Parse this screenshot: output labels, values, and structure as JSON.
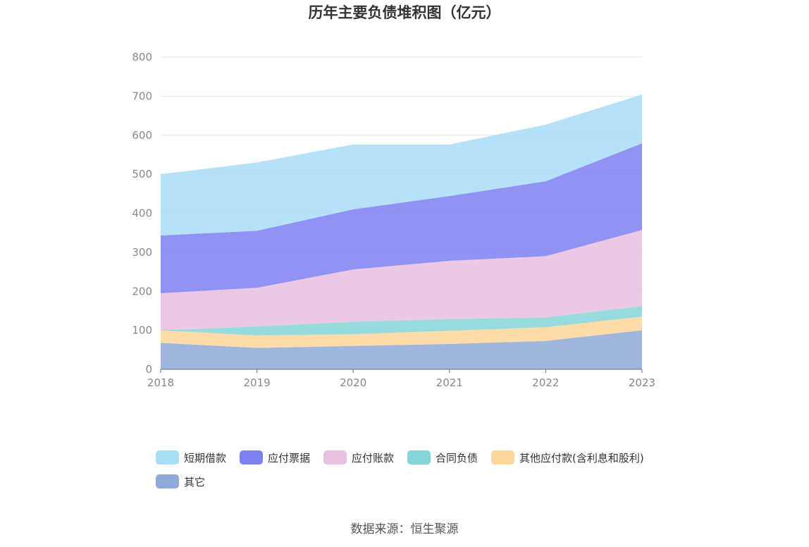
{
  "title": "历年主要负债堆积图（亿元）",
  "source": "数据来源：恒生聚源",
  "chart_data": {
    "type": "area",
    "stacked": true,
    "title": "历年主要负债堆积图（亿元）",
    "categories": [
      "2018",
      "2019",
      "2020",
      "2021",
      "2022",
      "2023"
    ],
    "ylim": [
      0,
      800
    ],
    "yticks": [
      0,
      100,
      200,
      300,
      400,
      500,
      600,
      700,
      800
    ],
    "grid": true,
    "legend_position": "bottom",
    "series": [
      {
        "name": "其它",
        "color": "#8fa9d8",
        "values": [
          68,
          55,
          60,
          65,
          73,
          100
        ]
      },
      {
        "name": "其他应付款(含利息和股利)",
        "color": "#fdd69a",
        "values": [
          32,
          32,
          30,
          34,
          35,
          35
        ]
      },
      {
        "name": "合同负债",
        "color": "#86d5d7",
        "values": [
          0,
          23,
          32,
          30,
          25,
          27
        ]
      },
      {
        "name": "应付账款",
        "color": "#e8bfdf",
        "values": [
          95,
          99,
          134,
          149,
          157,
          195
        ]
      },
      {
        "name": "应付票据",
        "color": "#7c7ff2",
        "values": [
          148,
          146,
          154,
          166,
          192,
          222
        ]
      },
      {
        "name": "短期借款",
        "color": "#a8ddf7",
        "values": [
          157,
          175,
          166,
          132,
          145,
          125
        ]
      }
    ]
  }
}
